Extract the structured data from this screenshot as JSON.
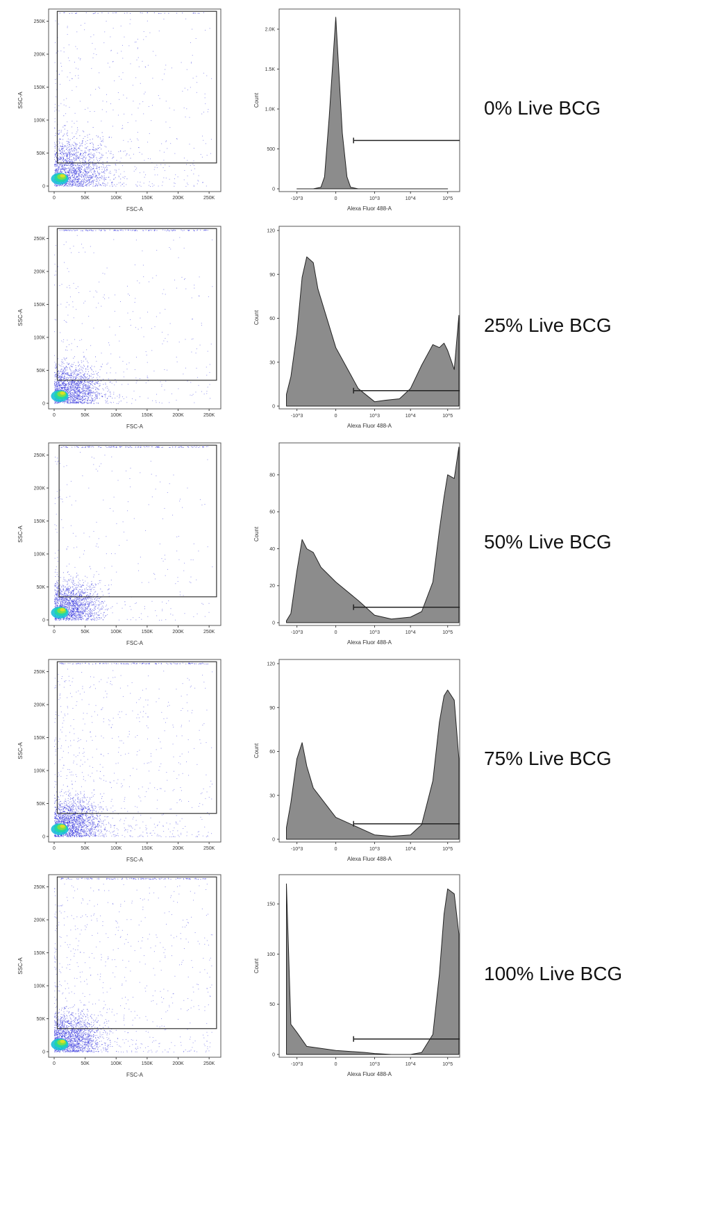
{
  "figure": {
    "rows": [
      {
        "label": "0% Live BCG"
      },
      {
        "label": "25% Live BCG"
      },
      {
        "label": "50% Live BCG"
      },
      {
        "label": "75% Live BCG"
      },
      {
        "label": "100% Live BCG"
      }
    ]
  },
  "chart_data": [
    {
      "type": "scatter",
      "panel": "0% Live BCG dot plot",
      "xlabel": "FSC-A",
      "ylabel": "SSC-A",
      "xlim": [
        0,
        262144
      ],
      "ylim": [
        0,
        262144
      ],
      "x_ticks": [
        "0",
        "50K",
        "100K",
        "150K",
        "200K",
        "250K"
      ],
      "y_ticks": [
        "0",
        "50K",
        "100K",
        "150K",
        "200K",
        "250K"
      ],
      "gate": {
        "x": [
          5000,
          262000
        ],
        "y": [
          35000,
          265000
        ]
      },
      "density": "dense blue-green-yellow cluster near origin extending to ~120K FSC / ~100K SSC, sparse points scattered to 250K"
    },
    {
      "type": "area",
      "panel": "0% Live BCG histogram",
      "xlabel": "Alexa Fluor 488-A",
      "ylabel": "Count",
      "x_ticks": [
        "-10^3",
        "0",
        "10^3",
        "10^4",
        "10^5"
      ],
      "y_ticks": [
        "0",
        "500",
        "1.0K",
        "1.5K",
        "2.0K"
      ],
      "ylim": [
        0,
        2200
      ],
      "gate_from": "2x10^2 to 10^5",
      "x": [
        -1000,
        -300,
        -150,
        -100,
        -50,
        0,
        50,
        100,
        150,
        300,
        1000,
        10000,
        100000
      ],
      "y": [
        0,
        0,
        20,
        150,
        900,
        2150,
        700,
        150,
        20,
        0,
        0,
        0,
        0
      ]
    },
    {
      "type": "scatter",
      "panel": "25% Live BCG dot plot",
      "xlabel": "FSC-A",
      "ylabel": "SSC-A",
      "xlim": [
        0,
        262144
      ],
      "ylim": [
        0,
        262144
      ],
      "x_ticks": [
        "0",
        "50K",
        "100K",
        "150K",
        "200K",
        "250K"
      ],
      "y_ticks": [
        "0",
        "50K",
        "100K",
        "150K",
        "200K",
        "250K"
      ],
      "gate": {
        "x": [
          5000,
          262000
        ],
        "y": [
          35000,
          265000
        ]
      }
    },
    {
      "type": "area",
      "panel": "25% Live BCG histogram",
      "xlabel": "Alexa Fluor 488-A",
      "ylabel": "Count",
      "x_ticks": [
        "-10^3",
        "0",
        "10^3",
        "10^4",
        "10^5"
      ],
      "y_ticks": [
        "0",
        "30",
        "60",
        "90",
        "120"
      ],
      "ylim": [
        0,
        120
      ],
      "x": [
        -2000,
        -1500,
        -1000,
        -700,
        -500,
        -300,
        -200,
        0,
        300,
        1000,
        2000,
        5000,
        10000,
        20000,
        40000,
        60000,
        80000,
        100000,
        150000,
        200000
      ],
      "y": [
        8,
        20,
        50,
        88,
        102,
        98,
        80,
        40,
        12,
        3,
        4,
        5,
        12,
        28,
        42,
        40,
        43,
        38,
        25,
        62
      ]
    },
    {
      "type": "scatter",
      "panel": "50% Live BCG dot plot",
      "xlabel": "FSC-A",
      "ylabel": "SSC-A",
      "xlim": [
        0,
        262144
      ],
      "ylim": [
        0,
        262144
      ],
      "x_ticks": [
        "0",
        "50K",
        "100K",
        "150K",
        "200K",
        "250K"
      ],
      "y_ticks": [
        "0",
        "50K",
        "100K",
        "150K",
        "200K",
        "250K"
      ],
      "gate": {
        "x": [
          8000,
          262000
        ],
        "y": [
          35000,
          265000
        ]
      }
    },
    {
      "type": "area",
      "panel": "50% Live BCG histogram",
      "xlabel": "Alexa Fluor 488-A",
      "ylabel": "Count",
      "x_ticks": [
        "-10^3",
        "0",
        "10^3",
        "10^4",
        "10^5"
      ],
      "y_ticks": [
        "0",
        "20",
        "40",
        "60",
        "80"
      ],
      "ylim": [
        0,
        95
      ],
      "x": [
        -2000,
        -1500,
        -1000,
        -700,
        -500,
        -300,
        -150,
        0,
        300,
        1000,
        3000,
        10000,
        20000,
        40000,
        60000,
        80000,
        100000,
        150000,
        200000
      ],
      "y": [
        1,
        5,
        28,
        45,
        40,
        38,
        30,
        22,
        12,
        4,
        2,
        3,
        6,
        22,
        50,
        68,
        80,
        78,
        95
      ]
    },
    {
      "type": "scatter",
      "panel": "75% Live BCG dot plot",
      "xlabel": "FSC-A",
      "ylabel": "SSC-A",
      "xlim": [
        0,
        262144
      ],
      "ylim": [
        0,
        262144
      ],
      "x_ticks": [
        "0",
        "50K",
        "100K",
        "150K",
        "200K",
        "250K"
      ],
      "y_ticks": [
        "0",
        "50K",
        "100K",
        "150K",
        "200K",
        "250K"
      ],
      "gate": {
        "x": [
          5000,
          262000
        ],
        "y": [
          35000,
          265000
        ]
      }
    },
    {
      "type": "area",
      "panel": "75% Live BCG histogram",
      "xlabel": "Alexa Fluor 488-A",
      "ylabel": "Count",
      "x_ticks": [
        "-10^3",
        "0",
        "10^3",
        "10^4",
        "10^5"
      ],
      "y_ticks": [
        "0",
        "30",
        "60",
        "90",
        "120"
      ],
      "ylim": [
        0,
        120
      ],
      "x": [
        -2000,
        -1500,
        -1000,
        -700,
        -500,
        -300,
        0,
        500,
        1000,
        3000,
        10000,
        20000,
        40000,
        60000,
        80000,
        100000,
        150000,
        200000
      ],
      "y": [
        8,
        25,
        55,
        66,
        50,
        35,
        15,
        6,
        3,
        2,
        3,
        10,
        40,
        80,
        98,
        102,
        95,
        55
      ]
    },
    {
      "type": "scatter",
      "panel": "100% Live BCG dot plot",
      "xlabel": "FSC-A",
      "ylabel": "SSC-A",
      "xlim": [
        0,
        262144
      ],
      "ylim": [
        0,
        262144
      ],
      "x_ticks": [
        "0",
        "50K",
        "100K",
        "150K",
        "200K",
        "250K"
      ],
      "y_ticks": [
        "0",
        "50K",
        "100K",
        "150K",
        "200K",
        "250K"
      ],
      "gate": {
        "x": [
          5000,
          262000
        ],
        "y": [
          35000,
          265000
        ]
      }
    },
    {
      "type": "area",
      "panel": "100% Live BCG histogram",
      "xlabel": "Alexa Fluor 488-A",
      "ylabel": "Count",
      "x_ticks": [
        "-10^3",
        "0",
        "10^3",
        "10^4",
        "10^5"
      ],
      "y_ticks": [
        "0",
        "50",
        "100",
        "150"
      ],
      "ylim": [
        0,
        175
      ],
      "x": [
        -2000,
        -1500,
        -1000,
        -500,
        0,
        500,
        1000,
        3000,
        10000,
        20000,
        40000,
        60000,
        80000,
        100000,
        150000,
        200000
      ],
      "y": [
        170,
        30,
        22,
        8,
        4,
        2,
        1,
        0,
        0,
        2,
        20,
        80,
        140,
        165,
        160,
        120
      ]
    }
  ]
}
